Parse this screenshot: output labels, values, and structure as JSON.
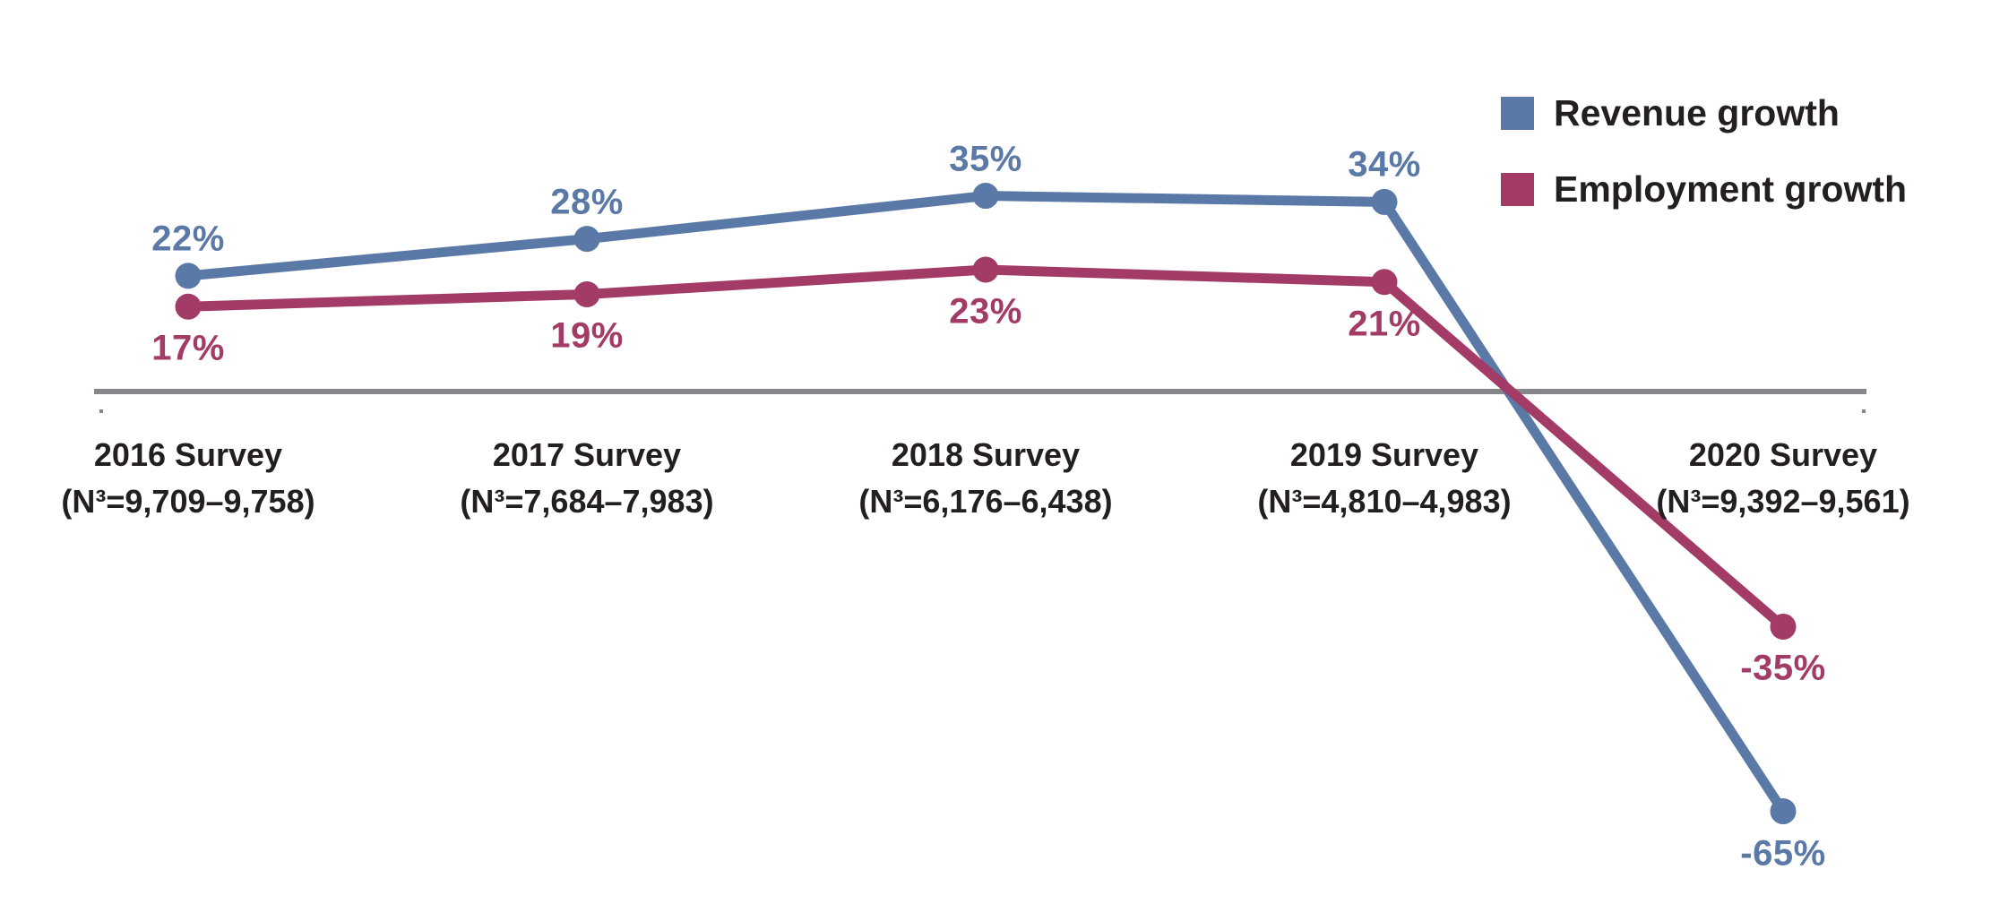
{
  "chart_data": {
    "type": "line",
    "title": "",
    "xlabel": "",
    "ylabel": "",
    "grid": false,
    "legend_position": "top-right",
    "background": "#ffffff",
    "text_color": "#231f20",
    "axis": {
      "color": "#85878a",
      "zero_value": 0
    },
    "ylim": [
      -70,
      40
    ],
    "categories": [
      {
        "label": "2016 Survey",
        "n_label": "(N³=9,709–9,758)"
      },
      {
        "label": "2017 Survey",
        "n_label": "(N³=7,684–7,983)"
      },
      {
        "label": "2018 Survey",
        "n_label": "(N³=6,176–6,438)"
      },
      {
        "label": "2019 Survey",
        "n_label": "(N³=4,810–4,983)"
      },
      {
        "label": "2020 Survey",
        "n_label": "(N³=9,392–9,561)"
      }
    ],
    "series": [
      {
        "name": "Revenue growth",
        "color": "#5b79a6",
        "values": [
          22,
          28,
          35,
          34,
          -65
        ],
        "value_labels": [
          "22%",
          "28%",
          "35%",
          "34%",
          "-65%"
        ],
        "label_side": [
          "above",
          "above",
          "above",
          "above",
          "below"
        ]
      },
      {
        "name": "Employment growth",
        "color": "#a33b67",
        "values": [
          17,
          19,
          23,
          21,
          -35
        ],
        "value_labels": [
          "17%",
          "19%",
          "23%",
          "21%",
          "-35%"
        ],
        "label_side": [
          "below",
          "below",
          "below",
          "below",
          "below"
        ]
      }
    ]
  }
}
